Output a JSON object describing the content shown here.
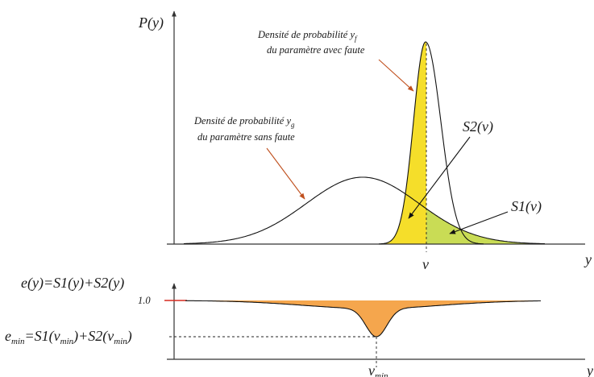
{
  "top_plot": {
    "y_axis_label": "P(y)",
    "x_axis_label": "y",
    "v_label": "v",
    "faulty_density_label": {
      "line1": "Densité de probabilité y",
      "line1_sub": "f",
      "line2": "du paramètre avec faute"
    },
    "normal_density_label": {
      "line1": "Densité de probabilité y",
      "line1_sub": "g",
      "line2": "du paramètre sans faute"
    },
    "s2_label": "S2(v)",
    "s1_label": "S1(v)"
  },
  "bottom_plot": {
    "y_axis_label": "e(y)=S1(y)+S2(y)",
    "level_label": "1.0",
    "x_axis_label": "y",
    "emin_label": {
      "e": "e",
      "e_sub": "min",
      "mid": "=S1(v",
      "v1_sub": "min",
      "mid2": ")+S2(v",
      "v2_sub": "min",
      "end": ")"
    },
    "vmin_label": {
      "v": "v",
      "sub": "min"
    }
  },
  "colors": {
    "s2_fill": "#f5de2a",
    "s1_fill": "#c9dc55",
    "error_fill": "#f5a64d",
    "pointer_red": "#c0501e",
    "level_tick": "#d62a1e"
  }
}
